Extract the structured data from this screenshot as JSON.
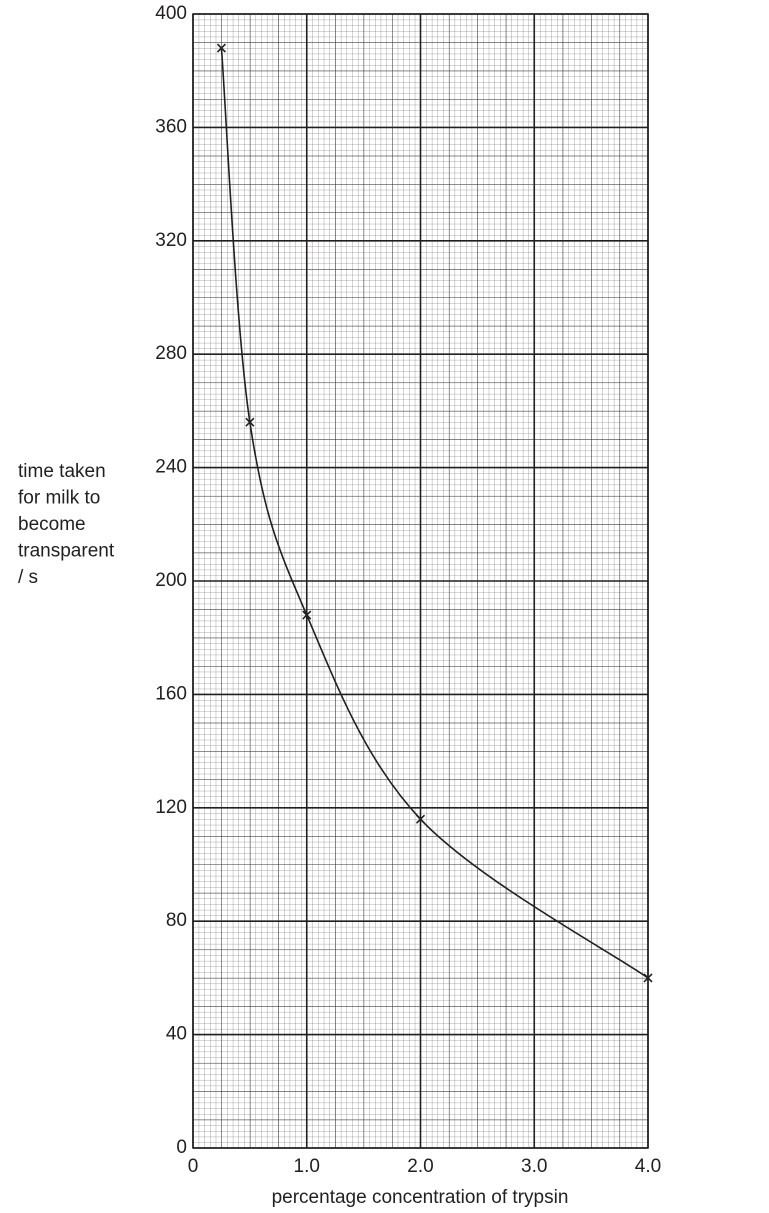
{
  "chart_data": {
    "type": "line",
    "marker": "x",
    "color": "#231f20",
    "x": [
      0.25,
      0.5,
      1,
      2,
      4
    ],
    "values": [
      388,
      256,
      188,
      116,
      60
    ],
    "xlim": [
      0,
      4
    ],
    "ylim": [
      0,
      400
    ],
    "xticks": [
      0,
      {
        "value": 1,
        "label": "1.0"
      },
      {
        "value": 2,
        "label": "2.0"
      },
      {
        "value": 3,
        "label": "3.0"
      },
      {
        "value": 4,
        "label": "4.0"
      }
    ],
    "yticks": [
      0,
      40,
      80,
      120,
      160,
      200,
      240,
      280,
      320,
      360,
      400
    ],
    "grid": true,
    "xlabel": "percentage concentration of trypsin",
    "ylabel": [
      "time taken",
      "for milk to",
      "become",
      "transparent",
      "/ s"
    ]
  }
}
